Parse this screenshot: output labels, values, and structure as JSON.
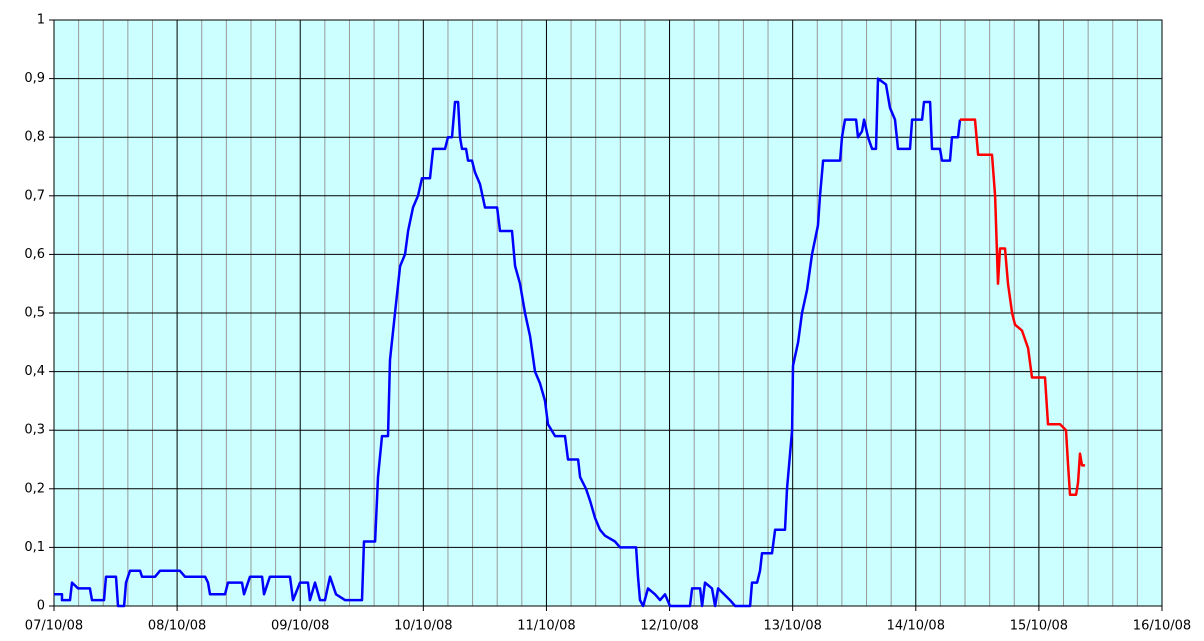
{
  "chart_data": {
    "type": "line",
    "background": "#ccffff",
    "grid": true,
    "xlim": [
      0,
      9
    ],
    "xticks": [
      {
        "value": 0,
        "label": "07/10/08"
      },
      {
        "value": 1,
        "label": "08/10/08"
      },
      {
        "value": 2,
        "label": "09/10/08"
      },
      {
        "value": 3,
        "label": "10/10/08"
      },
      {
        "value": 4,
        "label": "11/10/08"
      },
      {
        "value": 5,
        "label": "12/10/08"
      },
      {
        "value": 6,
        "label": "13/10/08"
      },
      {
        "value": 7,
        "label": "14/10/08"
      },
      {
        "value": 8,
        "label": "15/10/08"
      },
      {
        "value": 9,
        "label": "16/10/08"
      }
    ],
    "xminorticks": [
      0.2,
      0.4,
      0.6,
      0.8,
      1.2,
      1.4,
      1.6,
      1.8,
      2.2,
      2.4,
      2.6,
      2.8,
      3.2,
      3.4,
      3.6,
      3.8,
      4.2,
      4.4,
      4.6,
      4.8,
      5.2,
      5.4,
      5.6,
      5.8,
      6.2,
      6.4,
      6.6,
      6.8,
      7.2,
      7.4,
      7.6,
      7.8,
      8.2,
      8.4,
      8.6,
      8.8
    ],
    "ylim": [
      0,
      1
    ],
    "yticks": [
      0,
      {
        "value": 0.1,
        "label": "0,1"
      },
      {
        "value": 0.2,
        "label": "0,2"
      },
      {
        "value": 0.3,
        "label": "0,3"
      },
      {
        "value": 0.4,
        "label": "0,4"
      },
      {
        "value": 0.5,
        "label": "0,5"
      },
      {
        "value": 0.6,
        "label": "0,6"
      },
      {
        "value": 0.7,
        "label": "0,7"
      },
      {
        "value": 0.8,
        "label": "0,8"
      },
      {
        "value": 0.9,
        "label": "0,9"
      },
      1
    ],
    "series": [
      {
        "color": "#0000ff",
        "x": [
          0,
          0.065,
          0.065,
          0.13,
          0.146,
          0.195,
          0.292,
          0.309,
          0.406,
          0.422,
          0.504,
          0.52,
          0.569,
          0.585,
          0.617,
          0.699,
          0.715,
          0.821,
          0.861,
          1.023,
          1.064,
          1.227,
          1.251,
          1.267,
          1.389,
          1.413,
          1.527,
          1.543,
          1.592,
          1.69,
          1.706,
          1.754,
          1.917,
          1.941,
          1.998,
          2.063,
          2.079,
          2.12,
          2.161,
          2.201,
          2.242,
          2.291,
          2.364,
          2.502,
          2.518,
          2.608,
          2.632,
          2.664,
          2.713,
          2.729,
          2.77,
          2.811,
          2.851,
          2.876,
          2.916,
          2.957,
          2.989,
          3.054,
          3.079,
          3.176,
          3.2,
          3.233,
          3.257,
          3.282,
          3.298,
          3.314,
          3.347,
          3.363,
          3.395,
          3.42,
          3.46,
          3.501,
          3.599,
          3.623,
          3.72,
          3.745,
          3.785,
          3.826,
          3.867,
          3.907,
          3.948,
          3.988,
          4.013,
          4.07,
          4.151,
          4.175,
          4.257,
          4.273,
          4.321,
          4.354,
          4.395,
          4.435,
          4.476,
          4.557,
          4.598,
          4.728,
          4.744,
          4.76,
          4.785,
          4.825,
          4.882,
          4.923,
          4.963,
          5.004,
          5.166,
          5.183,
          5.248,
          5.264,
          5.288,
          5.345,
          5.37,
          5.394,
          5.491,
          5.532,
          5.654,
          5.67,
          5.711,
          5.735,
          5.751,
          5.832,
          5.857,
          5.938,
          5.954,
          5.995,
          6.003,
          6.044,
          6.076,
          6.117,
          6.157,
          6.206,
          6.222,
          6.247,
          6.385,
          6.401,
          6.425,
          6.515,
          6.531,
          6.563,
          6.58,
          6.612,
          6.645,
          6.677,
          6.693,
          6.758,
          6.791,
          6.831,
          6.856,
          6.953,
          6.97,
          7.051,
          7.067,
          7.116,
          7.132,
          7.197,
          7.213,
          7.278,
          7.294,
          7.343,
          7.359
        ],
        "values": [
          0.02,
          0.02,
          0.01,
          0.01,
          0.04,
          0.03,
          0.03,
          0.01,
          0.01,
          0.05,
          0.05,
          0,
          0,
          0.04,
          0.06,
          0.06,
          0.05,
          0.05,
          0.06,
          0.06,
          0.05,
          0.05,
          0.04,
          0.02,
          0.02,
          0.04,
          0.04,
          0.02,
          0.05,
          0.05,
          0.02,
          0.05,
          0.05,
          0.01,
          0.04,
          0.04,
          0.01,
          0.04,
          0.01,
          0.01,
          0.05,
          0.02,
          0.01,
          0.01,
          0.11,
          0.11,
          0.22,
          0.29,
          0.29,
          0.42,
          0.5,
          0.58,
          0.6,
          0.64,
          0.68,
          0.7,
          0.73,
          0.73,
          0.78,
          0.78,
          0.8,
          0.8,
          0.86,
          0.86,
          0.8,
          0.78,
          0.78,
          0.76,
          0.76,
          0.74,
          0.72,
          0.68,
          0.68,
          0.64,
          0.64,
          0.58,
          0.55,
          0.5,
          0.46,
          0.4,
          0.38,
          0.35,
          0.31,
          0.29,
          0.29,
          0.25,
          0.25,
          0.22,
          0.2,
          0.18,
          0.15,
          0.13,
          0.12,
          0.11,
          0.1,
          0.1,
          0.05,
          0.01,
          0,
          0.03,
          0.02,
          0.01,
          0.02,
          0,
          0,
          0.03,
          0.03,
          0,
          0.04,
          0.03,
          0,
          0.03,
          0.01,
          0,
          0,
          0.04,
          0.04,
          0.06,
          0.09,
          0.09,
          0.13,
          0.13,
          0.2,
          0.3,
          0.41,
          0.45,
          0.5,
          0.54,
          0.6,
          0.65,
          0.7,
          0.76,
          0.76,
          0.8,
          0.83,
          0.83,
          0.8,
          0.81,
          0.83,
          0.8,
          0.78,
          0.78,
          0.9,
          0.89,
          0.85,
          0.83,
          0.78,
          0.78,
          0.83,
          0.83,
          0.86,
          0.86,
          0.78,
          0.78,
          0.76,
          0.76,
          0.8,
          0.8,
          0.83
        ]
      },
      {
        "color": "#ff0000",
        "x": [
          7.359,
          7.481,
          7.506,
          7.619,
          7.644,
          7.668,
          7.684,
          7.725,
          7.749,
          7.782,
          7.806,
          7.863,
          7.912,
          7.944,
          8.05,
          8.074,
          8.172,
          8.22,
          8.237,
          8.253,
          8.302,
          8.318,
          8.334,
          8.35,
          8.375
        ],
        "values": [
          0.83,
          0.83,
          0.77,
          0.77,
          0.7,
          0.55,
          0.61,
          0.61,
          0.55,
          0.5,
          0.48,
          0.47,
          0.44,
          0.39,
          0.39,
          0.31,
          0.31,
          0.3,
          0.24,
          0.19,
          0.19,
          0.21,
          0.26,
          0.24,
          0.24
        ]
      }
    ]
  }
}
